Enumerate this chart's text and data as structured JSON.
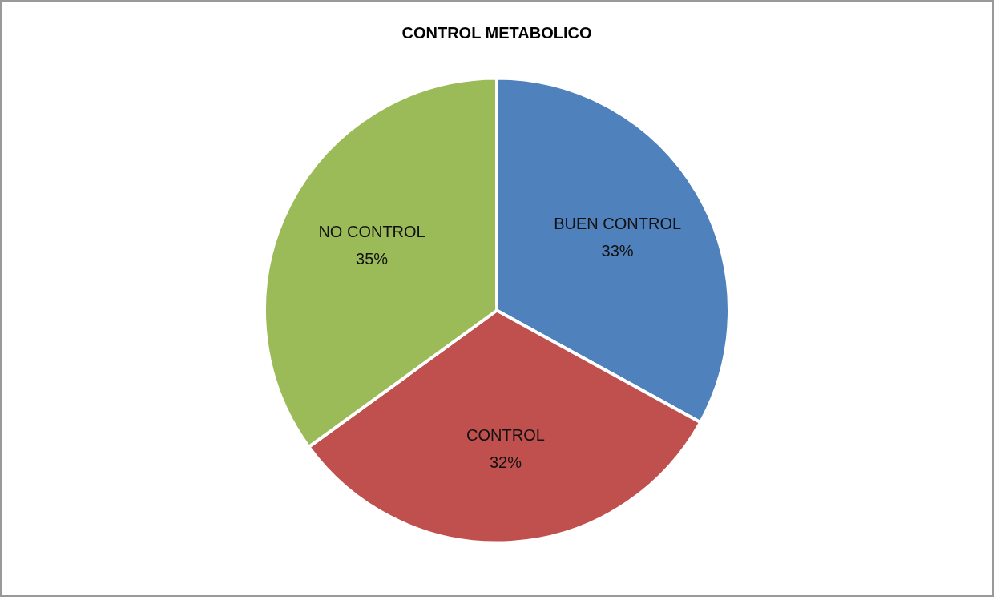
{
  "chart_data": {
    "type": "pie",
    "title": "CONTROL METABOLICO",
    "categories": [
      "BUEN CONTROL",
      "CONTROL",
      "NO CONTROL"
    ],
    "values": [
      33,
      32,
      35
    ],
    "value_labels": [
      "33%",
      "32%",
      "35%"
    ],
    "colors": [
      "#4f81bd",
      "#c0504d",
      "#9bbb59"
    ]
  }
}
